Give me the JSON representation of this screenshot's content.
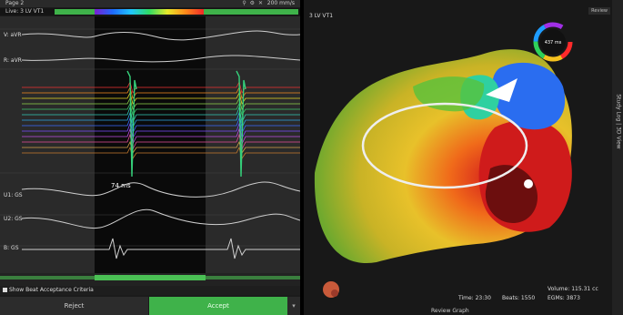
{
  "left_panel": {
    "page_label": "Page 2",
    "live_label": "Live: 3 LV VT1",
    "sweep_speed": "200 mm/s",
    "channels": [
      "V: aVR",
      "R: aVR",
      "U1: GS",
      "U2: GS",
      "B: GS"
    ],
    "interval_label": "74 ms",
    "beat_acceptance_label": "Show Beat Acceptance Criteria",
    "reject_label": "Reject",
    "accept_label": "Accept"
  },
  "right_panel": {
    "map_title": "3 LV VT1",
    "view_button": "Review",
    "color_wheel_value": "437 ms",
    "side_tab_label": "Study Log | 3D View",
    "time_label": "Time: 23:30",
    "beats_label": "Beats: 1550",
    "volume_label": "Volume: 115.31 cc",
    "egms_label": "EGMs: 3873",
    "footer_label": "Review Graph"
  },
  "colors": {
    "accent_green": "#3fb24a",
    "panel_bg": "#1b1b1b",
    "activation_early": "#f02828",
    "activation_late": "#1e6bff"
  },
  "icons": [
    "zoom-icon",
    "settings-icon",
    "close-icon",
    "color-wheel-icon",
    "orientation-icon"
  ]
}
